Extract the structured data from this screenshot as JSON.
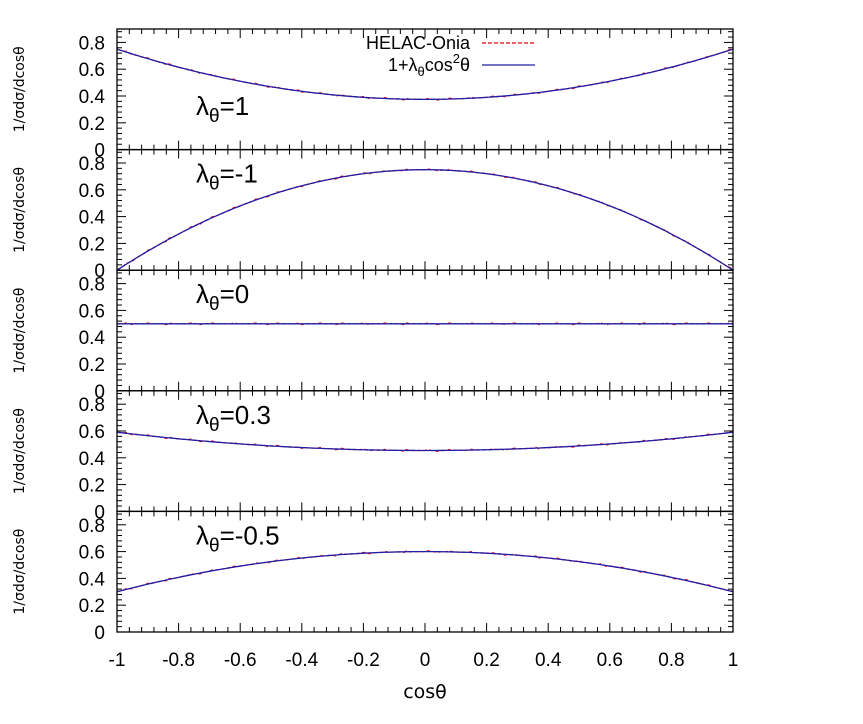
{
  "chart_data": {
    "type": "line",
    "layout": "5 vertically stacked panels sharing x-axis",
    "xlabel": "cosθ",
    "ylabel": "1/σdσ/dcosθ",
    "xlim": [
      -1,
      1
    ],
    "ylim": [
      0,
      0.9
    ],
    "x_ticks": [
      "-1",
      "-0.8",
      "-0.6",
      "-0.4",
      "-0.2",
      "0",
      "0.2",
      "0.4",
      "0.6",
      "0.8",
      "1"
    ],
    "y_ticks": [
      "0",
      "0.2",
      "0.4",
      "0.6",
      "0.8"
    ],
    "grid": false,
    "legend": {
      "position": "top-center inside first panel",
      "entries": [
        {
          "label": "HELAC-Onia",
          "style": "dashed",
          "color": "#e8000b"
        },
        {
          "label_parts": [
            "1+",
            "λ",
            "θ",
            "cos",
            "2",
            "θ"
          ],
          "label": "1+λθcos²θ",
          "style": "solid",
          "color": "#1f1fa8"
        }
      ]
    },
    "x": [
      -1,
      -0.8,
      -0.6,
      -0.4,
      -0.2,
      0,
      0.2,
      0.4,
      0.6,
      0.8,
      1
    ],
    "panels": [
      {
        "label_base": "λ",
        "label_sub": "θ",
        "label_value": "=1",
        "lambda": 1,
        "series": [
          {
            "name": "HELAC-Onia",
            "values": [
              0.75,
              0.615,
              0.51,
              0.435,
              0.39,
              0.375,
              0.39,
              0.435,
              0.51,
              0.615,
              0.75
            ]
          },
          {
            "name": "1+λθcos²θ",
            "values": [
              0.75,
              0.615,
              0.51,
              0.435,
              0.39,
              0.375,
              0.39,
              0.435,
              0.51,
              0.615,
              0.75
            ]
          }
        ]
      },
      {
        "label_base": "λ",
        "label_sub": "θ",
        "label_value": "=-1",
        "lambda": -1,
        "series": [
          {
            "name": "HELAC-Onia",
            "values": [
              0.0,
              0.27,
              0.48,
              0.63,
              0.72,
              0.75,
              0.72,
              0.63,
              0.48,
              0.27,
              0.0
            ]
          },
          {
            "name": "1+λθcos²θ",
            "values": [
              0.0,
              0.27,
              0.48,
              0.63,
              0.72,
              0.75,
              0.72,
              0.63,
              0.48,
              0.27,
              0.0
            ]
          }
        ]
      },
      {
        "label_base": "λ",
        "label_sub": "θ",
        "label_value": "=0",
        "lambda": 0,
        "series": [
          {
            "name": "HELAC-Onia",
            "values": [
              0.5,
              0.5,
              0.5,
              0.5,
              0.5,
              0.5,
              0.5,
              0.5,
              0.5,
              0.5,
              0.5
            ]
          },
          {
            "name": "1+λθcos²θ",
            "values": [
              0.5,
              0.5,
              0.5,
              0.5,
              0.5,
              0.5,
              0.5,
              0.5,
              0.5,
              0.5,
              0.5
            ]
          }
        ]
      },
      {
        "label_base": "λ",
        "label_sub": "θ",
        "label_value": "=0.3",
        "lambda": 0.3,
        "series": [
          {
            "name": "HELAC-Onia",
            "values": [
              0.591,
              0.535,
              0.49,
              0.459,
              0.44,
              0.435,
              0.44,
              0.459,
              0.49,
              0.535,
              0.591
            ]
          },
          {
            "name": "1+λθcos²θ",
            "values": [
              0.591,
              0.535,
              0.49,
              0.459,
              0.44,
              0.435,
              0.44,
              0.459,
              0.49,
              0.535,
              0.591
            ]
          }
        ]
      },
      {
        "label_base": "λ",
        "label_sub": "θ",
        "label_value": "=-0.5",
        "lambda": -0.5,
        "series": [
          {
            "name": "HELAC-Onia",
            "values": [
              0.3,
              0.408,
              0.492,
              0.552,
              0.588,
              0.6,
              0.588,
              0.552,
              0.492,
              0.408,
              0.3
            ]
          },
          {
            "name": "1+λθcos²θ",
            "values": [
              0.3,
              0.408,
              0.492,
              0.552,
              0.588,
              0.6,
              0.588,
              0.552,
              0.492,
              0.408,
              0.3
            ]
          }
        ]
      }
    ]
  },
  "colors": {
    "helac": "#e8000b",
    "theory": "#1f1fa8",
    "frame": "#000000"
  }
}
